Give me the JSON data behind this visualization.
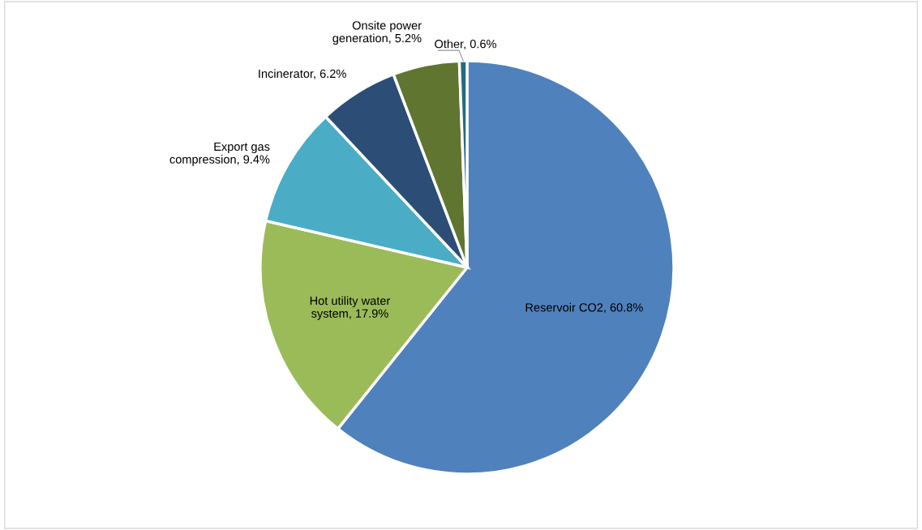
{
  "chart_data": {
    "type": "pie",
    "categories": [
      "Reservoir CO2",
      "Hot utility water system",
      "Export gas compression",
      "Incinerator",
      "Onsite power generation",
      "Other"
    ],
    "values": [
      60.8,
      17.9,
      9.4,
      6.2,
      5.2,
      0.6
    ],
    "value_labels": [
      "60.8%",
      "17.9%",
      "9.4%",
      "6.2%",
      "5.2%",
      "0.6%"
    ],
    "colors": [
      "#4f81bd",
      "#9bbb59",
      "#4bacc6",
      "#2c4d75",
      "#5f7530",
      "#276a7c"
    ],
    "legend": false
  }
}
